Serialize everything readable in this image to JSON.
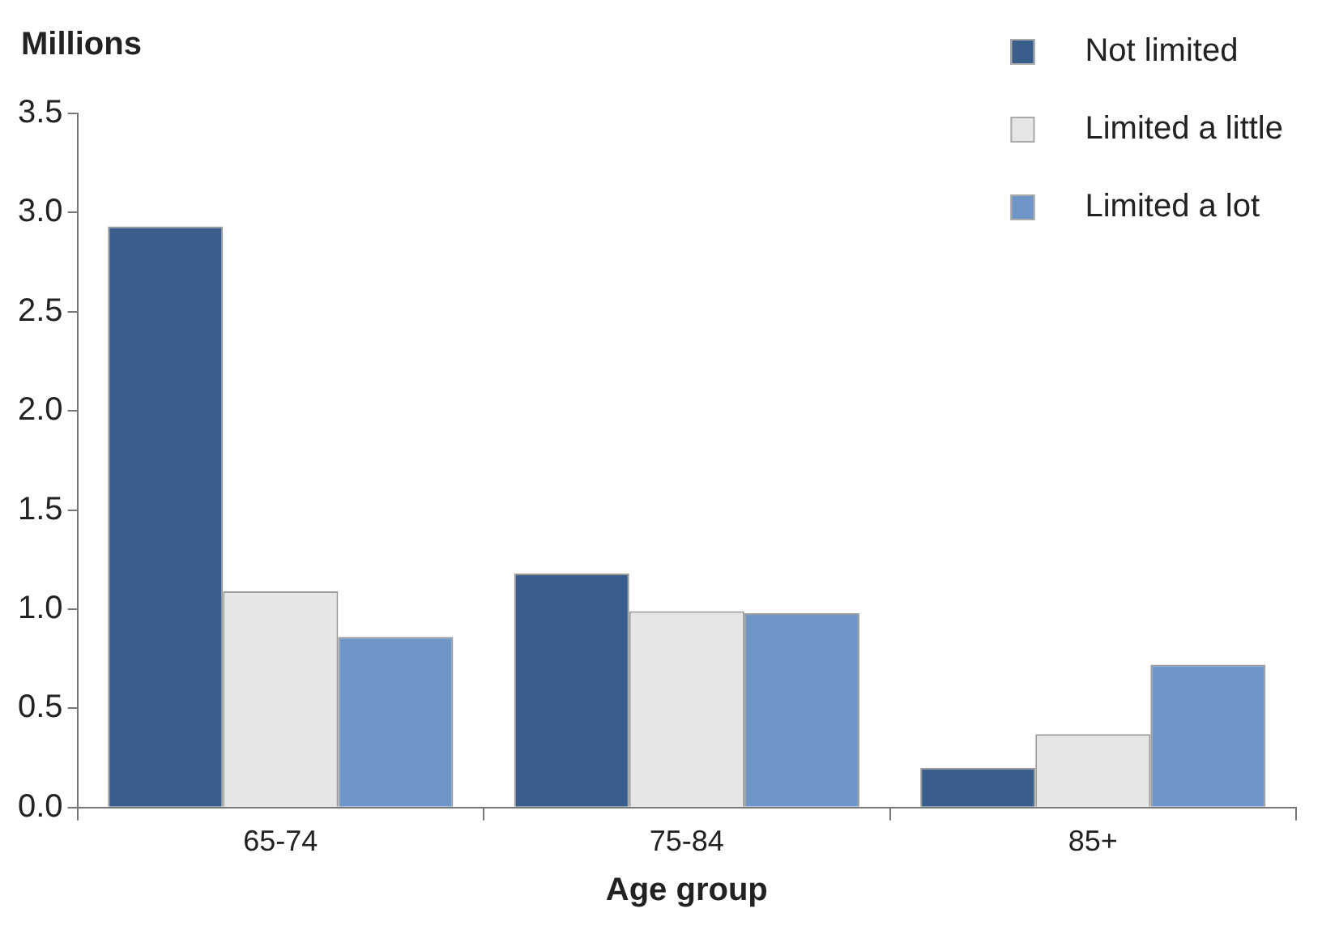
{
  "chart_data": {
    "type": "bar",
    "ylabel": "Millions",
    "xlabel": "Age group",
    "categories": [
      "65-74",
      "75-84",
      "85+"
    ],
    "series": [
      {
        "name": "Not limited",
        "color": "#3a5e8c",
        "values": [
          2.93,
          1.18,
          0.2
        ]
      },
      {
        "name": "Limited a little",
        "color": "#e6e6e6",
        "values": [
          1.09,
          0.99,
          0.37
        ]
      },
      {
        "name": "Limited a lot",
        "color": "#6f96c9",
        "values": [
          0.86,
          0.98,
          0.72
        ]
      }
    ],
    "ylim": [
      0,
      3.5
    ],
    "yticks": [
      {
        "value": 0,
        "label": "0.0"
      },
      {
        "value": 0.5,
        "label": "0.5"
      },
      {
        "value": 1,
        "label": "1.0"
      },
      {
        "value": 1.5,
        "label": "1.5"
      },
      {
        "value": 2,
        "label": "2.0"
      },
      {
        "value": 2.5,
        "label": "2.5"
      },
      {
        "value": 3,
        "label": "3.0"
      },
      {
        "value": 3.5,
        "label": "3.5"
      }
    ],
    "grid": false,
    "legend": "top right"
  }
}
